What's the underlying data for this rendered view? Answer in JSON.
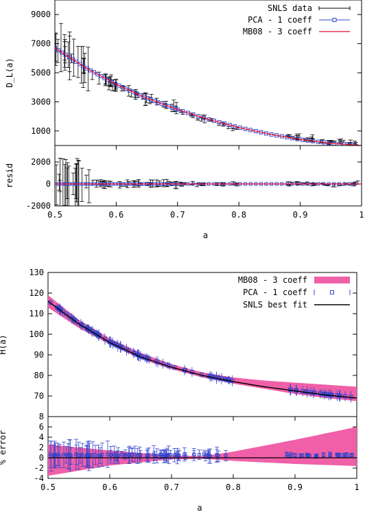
{
  "chart_data": [
    {
      "type": "line",
      "panel": "top-main",
      "ylabel": "D_L(a)",
      "xlim": [
        0.5,
        1.0
      ],
      "ylim": [
        0,
        10000
      ],
      "yticks": [
        1000,
        3000,
        5000,
        7000,
        9000
      ],
      "grid": false,
      "legend_position": "top-right",
      "legend": [
        {
          "label": "SNLS data",
          "color": "#000000",
          "marker": "errorbar"
        },
        {
          "label": "PCA - 1 coeff",
          "color": "#3344cc",
          "marker": "square-line"
        },
        {
          "label": "MB08 - 3 coeff",
          "color": "#dd1133",
          "marker": "line"
        }
      ],
      "series": [
        {
          "name": "SNLS data",
          "x": [
            0.5,
            0.505,
            0.51,
            0.515,
            0.52,
            0.53,
            0.54,
            0.55,
            0.56,
            0.57,
            0.58,
            0.6,
            0.62,
            0.65,
            0.67,
            0.7,
            0.73,
            0.75,
            0.77,
            0.8,
            0.9,
            0.95,
            0.98,
            0.995
          ],
          "y": [
            6700,
            6550,
            6600,
            6400,
            6300,
            6000,
            5700,
            5300,
            5000,
            4800,
            4600,
            4100,
            3800,
            3200,
            2950,
            2500,
            1950,
            1800,
            1500,
            1100,
            550,
            300,
            170,
            80
          ]
        },
        {
          "name": "MB08 - 3 coeff",
          "x": [
            0.5,
            0.55,
            0.6,
            0.65,
            0.7,
            0.75,
            0.8,
            0.85,
            0.9,
            0.95,
            1.0
          ],
          "y": [
            6700,
            5350,
            4200,
            3250,
            2470,
            1800,
            1240,
            780,
            410,
            150,
            0
          ]
        }
      ]
    },
    {
      "type": "scatter",
      "panel": "top-residual",
      "xlabel": "a",
      "ylabel": "resid",
      "xlim": [
        0.5,
        1.0
      ],
      "ylim": [
        -2000,
        3500
      ],
      "xticks": [
        0.5,
        0.6,
        0.7,
        0.8,
        0.9,
        1
      ],
      "yticks": [
        -2000,
        0,
        2000
      ],
      "series": [
        {
          "name": "SNLS data",
          "x": [
            0.5,
            0.51,
            0.515,
            0.52,
            0.53,
            0.55,
            0.6,
            0.65,
            0.7,
            0.75,
            0.8
          ],
          "y": [
            200,
            -400,
            800,
            300,
            -200,
            150,
            -100,
            50,
            -50,
            30,
            0
          ]
        }
      ]
    },
    {
      "type": "line",
      "panel": "bottom-main",
      "ylabel": "H(a)",
      "xlim": [
        0.5,
        1.0
      ],
      "ylim": [
        60,
        130
      ],
      "yticks": [
        70,
        80,
        90,
        100,
        110,
        120,
        130
      ],
      "grid": false,
      "legend_position": "top-right",
      "legend": [
        {
          "label": "MB08 - 3 coeff",
          "color": "#f060a8",
          "marker": "band"
        },
        {
          "label": "PCA - 1 coeff",
          "color": "#3344cc",
          "marker": "square-errorbar"
        },
        {
          "label": "SNLS best fit",
          "color": "#000000",
          "marker": "line"
        }
      ],
      "series": [
        {
          "name": "SNLS best fit",
          "x": [
            0.5,
            0.55,
            0.6,
            0.65,
            0.7,
            0.75,
            0.8,
            0.85,
            0.9,
            0.95,
            1.0
          ],
          "y": [
            116,
            105,
            96,
            89,
            84,
            80,
            77,
            74.5,
            72.5,
            70.5,
            69
          ]
        },
        {
          "name": "MB08 - 3 coeff upper",
          "x": [
            0.5,
            0.55,
            0.6,
            0.65,
            0.7,
            0.75,
            0.8,
            0.85,
            0.9,
            0.95,
            1.0
          ],
          "y": [
            119,
            107,
            98,
            91,
            85.5,
            81.5,
            79,
            77.5,
            76.5,
            75.5,
            74.5
          ]
        },
        {
          "name": "MB08 - 3 coeff lower",
          "x": [
            0.5,
            0.55,
            0.6,
            0.65,
            0.7,
            0.75,
            0.8,
            0.85,
            0.9,
            0.95,
            1.0
          ],
          "y": [
            113,
            103,
            95,
            88,
            83,
            79,
            76,
            73.5,
            71,
            69,
            67.5
          ]
        }
      ]
    },
    {
      "type": "line",
      "panel": "bottom-error",
      "xlabel": "a",
      "ylabel": "% error",
      "xlim": [
        0.5,
        1.0
      ],
      "ylim": [
        -4,
        8
      ],
      "xticks": [
        0.5,
        0.6,
        0.7,
        0.8,
        0.9,
        1
      ],
      "yticks": [
        -4,
        -2,
        0,
        2,
        4,
        6,
        8
      ],
      "series": [
        {
          "name": "MB08 upper",
          "x": [
            0.5,
            0.6,
            0.7,
            0.75,
            0.8,
            0.9,
            1.0
          ],
          "y": [
            2.6,
            1.4,
            0.5,
            0.3,
            1.2,
            3.5,
            6.0
          ]
        },
        {
          "name": "MB08 lower",
          "x": [
            0.5,
            0.6,
            0.7,
            0.75,
            0.8,
            0.9,
            1.0
          ],
          "y": [
            -3.5,
            -1.5,
            -0.3,
            -0.2,
            -0.6,
            -1.2,
            -1.6
          ]
        }
      ]
    }
  ]
}
